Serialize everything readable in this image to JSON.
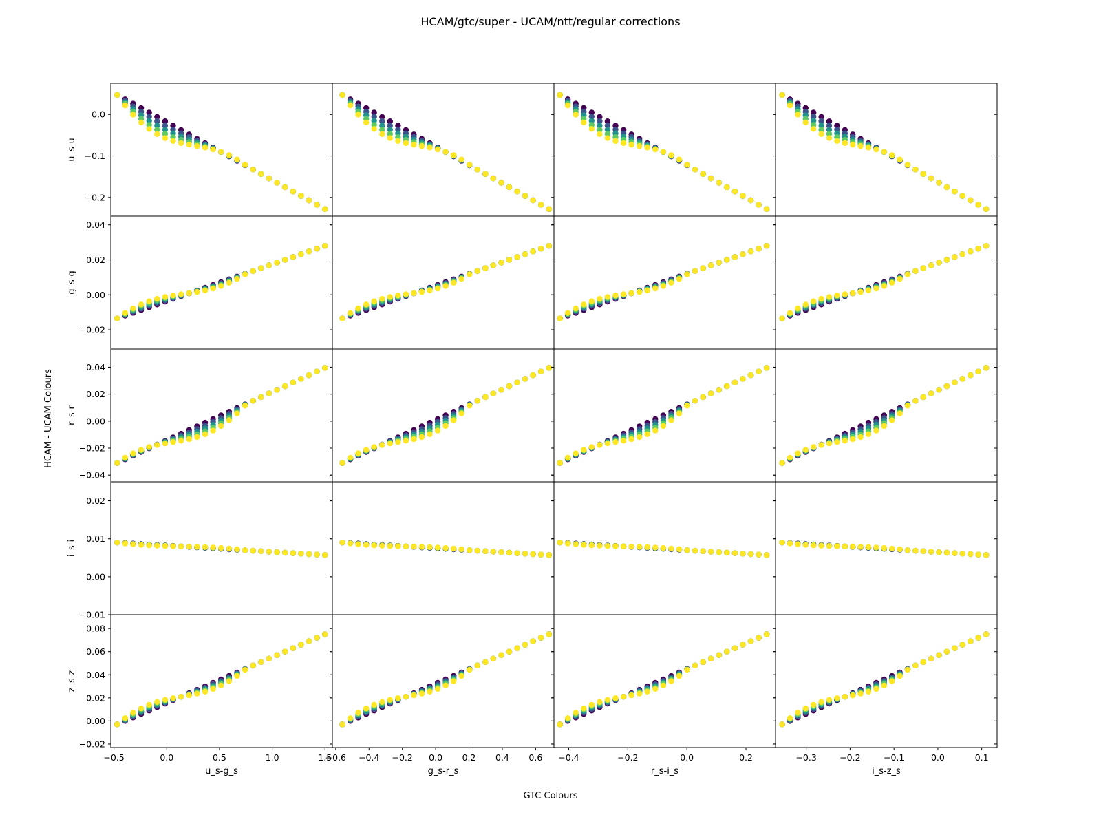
{
  "figure": {
    "title": "HCAM/gtc/super - UCAM/ntt/regular corrections",
    "xlabel": "GTC Colours",
    "ylabel": "HCAM - UCAM Colours"
  },
  "colormap": [
    "#440154",
    "#3b528b",
    "#21918c",
    "#5ec962",
    "#fde725"
  ],
  "chart_data": {
    "type": "scatter",
    "layout": "grid-5x4",
    "grid": false,
    "legend": "none",
    "column_xlabels": [
      "u_s-g_s",
      "g_s-r_s",
      "r_s-i_s",
      "i_s-z_s"
    ],
    "row_ylabels": [
      "u_s-u",
      "g_s-g",
      "r_s-r",
      "i_s-i",
      "z_s-z"
    ],
    "xlim": [
      [
        -0.53,
        1.57
      ],
      [
        -0.62,
        0.71
      ],
      [
        -0.45,
        0.3
      ],
      [
        -0.37,
        0.135
      ]
    ],
    "xticks": [
      [
        -0.5,
        0.0,
        0.5,
        1.0,
        1.5
      ],
      [
        -0.6,
        -0.4,
        -0.2,
        0.0,
        0.2,
        0.4,
        0.6
      ],
      [
        -0.4,
        -0.2,
        0.0,
        0.2
      ],
      [
        -0.3,
        -0.2,
        -0.1,
        0.0,
        0.1
      ]
    ],
    "xticklabels": [
      [
        "−0.5",
        "0.0",
        "0.5",
        "1.0",
        "1.5"
      ],
      [
        "−0.6",
        "−0.4",
        "−0.2",
        "0.0",
        "0.2",
        "0.4",
        "0.6"
      ],
      [
        "−0.4",
        "−0.2",
        "0.0",
        "0.2"
      ],
      [
        "−0.3",
        "−0.2",
        "−0.1",
        "0.0",
        "0.1"
      ]
    ],
    "ylim": [
      [
        -0.245,
        0.075
      ],
      [
        -0.031,
        0.045
      ],
      [
        -0.045,
        0.0535
      ],
      [
        -0.01,
        0.025
      ],
      [
        -0.023,
        0.092
      ]
    ],
    "yticks": [
      [
        -0.2,
        -0.1,
        0.0
      ],
      [
        -0.02,
        0.0,
        0.02,
        0.04
      ],
      [
        -0.04,
        -0.02,
        0.0,
        0.02,
        0.04
      ],
      [
        -0.01,
        0.0,
        0.01,
        0.02
      ],
      [
        -0.02,
        0.0,
        0.02,
        0.04,
        0.06,
        0.08
      ]
    ],
    "yticklabels": [
      [
        "−0.2",
        "−0.1",
        "0.0"
      ],
      [
        "−0.02",
        "0.00",
        "0.02",
        "0.04"
      ],
      [
        "−0.04",
        "−0.02",
        "0.00",
        "0.02",
        "0.04"
      ],
      [
        "−0.01",
        "0.00",
        "0.01",
        "0.02"
      ],
      [
        "−0.02",
        "0.00",
        "0.02",
        "0.04",
        "0.06",
        "0.08"
      ]
    ],
    "row_ranges": [
      {
        "start": 0.047,
        "end": -0.228,
        "loop_dip": -0.09
      },
      {
        "start": -0.0135,
        "end": 0.028,
        "loop_dip": 0.001
      },
      {
        "start": -0.031,
        "end": 0.0395,
        "loop_dip": -0.018
      },
      {
        "start": 0.009,
        "end": 0.0057,
        "loop_dip": 0.008
      },
      {
        "start": -0.003,
        "end": 0.075,
        "loop_dip": 0.021
      }
    ],
    "column_ranges": [
      {
        "start": -0.47,
        "end": 1.5
      },
      {
        "start": -0.56,
        "end": 0.68
      },
      {
        "start": -0.43,
        "end": 0.27
      },
      {
        "start": -0.355,
        "end": 0.11
      }
    ]
  }
}
